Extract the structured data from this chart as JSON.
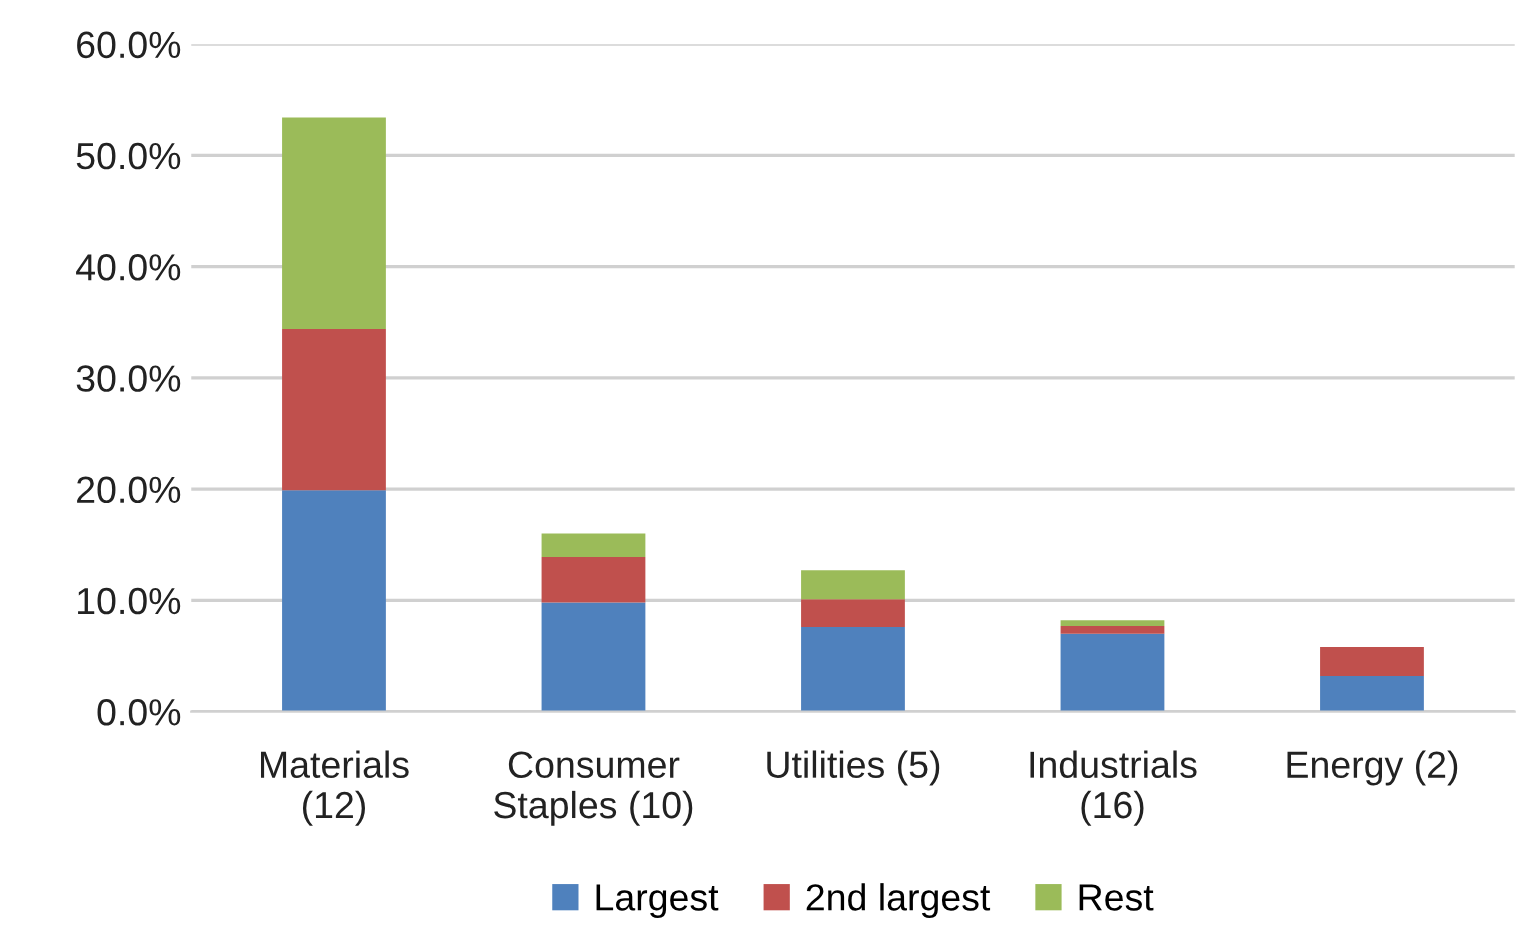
{
  "chart_data": {
    "type": "bar",
    "stacked": true,
    "categories": [
      "Materials\n(12)",
      "Consumer\nStaples (10)",
      "Utilities (5)",
      "Industrials\n(16)",
      "Energy (2)"
    ],
    "series": [
      {
        "name": "Largest",
        "color": "#4f81bd",
        "values": [
          19.9,
          9.8,
          7.6,
          7.0,
          3.2
        ]
      },
      {
        "name": "2nd largest",
        "color": "#c0504d",
        "values": [
          14.5,
          4.1,
          2.5,
          0.7,
          2.6
        ]
      },
      {
        "name": "Rest",
        "color": "#9bbb59",
        "values": [
          19.0,
          2.1,
          2.6,
          0.5,
          0
        ]
      }
    ],
    "ylim": [
      0,
      60
    ],
    "yticks": [
      {
        "value": 0,
        "label": "0.0%"
      },
      {
        "value": 10,
        "label": "10.0%"
      },
      {
        "value": 20,
        "label": "20.0%"
      },
      {
        "value": 30,
        "label": "30.0%"
      },
      {
        "value": 40,
        "label": "40.0%"
      },
      {
        "value": 50,
        "label": "50.0%"
      },
      {
        "value": 60,
        "label": "60.0%"
      }
    ],
    "grid": "y",
    "legend": "bottom"
  }
}
